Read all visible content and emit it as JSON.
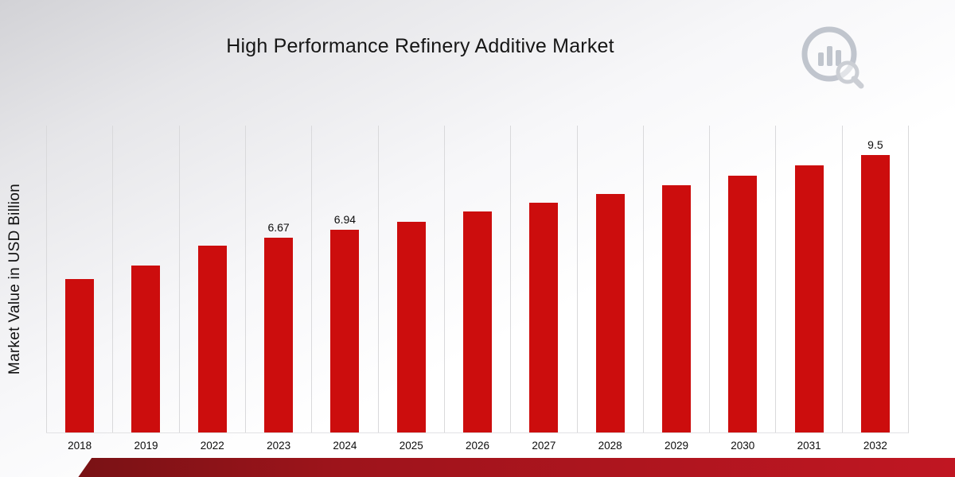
{
  "page": {
    "title": "High Performance Refinery Additive Market"
  },
  "chart_data": {
    "type": "bar",
    "title": "High Performance Refinery Additive Market",
    "xlabel": "",
    "ylabel": "Market Value in USD Billion",
    "ylim": [
      0,
      10.5
    ],
    "grid": "vertical-only",
    "legend": "none",
    "bar_color": "#cc0d0d",
    "categories": [
      "2018",
      "2019",
      "2022",
      "2023",
      "2024",
      "2025",
      "2026",
      "2027",
      "2028",
      "2029",
      "2030",
      "2031",
      "2032"
    ],
    "values": [
      5.25,
      5.7,
      6.4,
      6.67,
      6.94,
      7.2,
      7.55,
      7.85,
      8.15,
      8.45,
      8.8,
      9.15,
      9.5
    ],
    "value_labels": [
      "",
      "",
      "",
      "6.67",
      "6.94",
      "",
      "",
      "",
      "",
      "",
      "",
      "",
      "9.5"
    ]
  },
  "branding": {
    "logo_name": "market-research-chart-magnifier-logo",
    "logo_color": "#b7bcc6",
    "ribbon_color_left": "#6e1113",
    "ribbon_color_right": "#c01622"
  }
}
